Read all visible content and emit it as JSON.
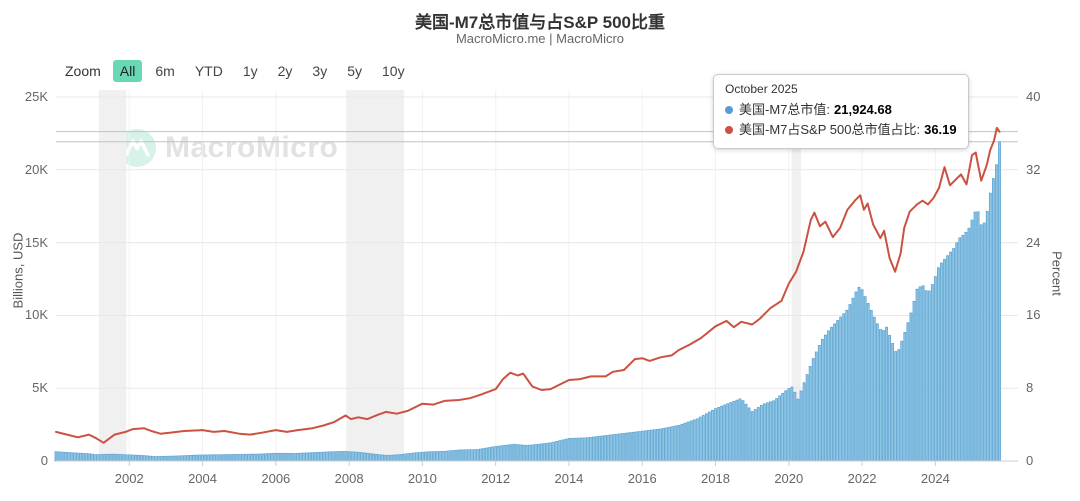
{
  "title": "美国-M7总市值与占S&P 500比重",
  "subtitle": "MacroMicro.me | MacroMicro",
  "watermark": {
    "text": "MacroMicro"
  },
  "toolbar": {
    "zoom_label": "Zoom",
    "ranges": [
      "All",
      "6m",
      "YTD",
      "1y",
      "2y",
      "3y",
      "5y",
      "10y"
    ],
    "active": "All"
  },
  "tooltip": {
    "date": "October 2025",
    "items": [
      {
        "label": "美国-M7总市值",
        "value": "21,924.68",
        "color": "#5b9bd5"
      },
      {
        "label": "美国-M7占S&P 500总市值占比",
        "value": "36.19",
        "color": "#cb5242"
      }
    ]
  },
  "left_axis": {
    "label": "Billions, USD",
    "ticks": [
      [
        0,
        "0"
      ],
      [
        5000,
        "5K"
      ],
      [
        10000,
        "10K"
      ],
      [
        15000,
        "15K"
      ],
      [
        20000,
        "20K"
      ],
      [
        25000,
        "25K"
      ]
    ]
  },
  "right_axis": {
    "label": "Percent",
    "ticks": [
      [
        0,
        "0"
      ],
      [
        8,
        "8"
      ],
      [
        16,
        "16"
      ],
      [
        24,
        "24"
      ],
      [
        32,
        "32"
      ],
      [
        40,
        "40"
      ]
    ]
  },
  "x_axis": {
    "tick_years": [
      2002,
      2004,
      2006,
      2008,
      2010,
      2012,
      2014,
      2016,
      2018,
      2020,
      2022,
      2024
    ]
  },
  "colors": {
    "bar_fill": "#8ec6e6",
    "bar_stroke": "#58a1d0",
    "line": "#cb5242",
    "grid": "#e7e7e7",
    "vgrid": "#f2f2f2",
    "axis_line": "#cccccc",
    "crosshair": "#c2c2c2",
    "band": "#f0f0f0",
    "active_btn": "#68d9b4",
    "logo_circle": "#d7f2e7"
  },
  "chart_data": {
    "type": "mixed",
    "xlim": [
      2000,
      2026.3
    ],
    "ylim_left": [
      0,
      25000
    ],
    "ylim_right": [
      0,
      40
    ],
    "resolution": "monthly",
    "last_point": {
      "date": "October 2025",
      "market_cap_billusd": 21924.68,
      "share_percent": 36.19
    },
    "recession_bands": [
      [
        2001.17,
        2001.92
      ],
      [
        2007.92,
        2009.5
      ],
      [
        2020.08,
        2020.33
      ]
    ],
    "crosshair_values": {
      "left": 21924.68,
      "right": 36.19
    },
    "series": [
      {
        "name": "美国-M7总市值",
        "type": "bar",
        "axis": "left",
        "unit": "Billions, USD",
        "points": [
          [
            2000.0,
            640
          ],
          [
            2000.3,
            590
          ],
          [
            2000.6,
            545
          ],
          [
            2000.9,
            500
          ],
          [
            2001.1,
            435
          ],
          [
            2001.35,
            460
          ],
          [
            2001.6,
            470
          ],
          [
            2001.9,
            430
          ],
          [
            2002.1,
            415
          ],
          [
            2002.4,
            375
          ],
          [
            2002.7,
            305
          ],
          [
            2003.0,
            325
          ],
          [
            2003.4,
            355
          ],
          [
            2003.8,
            405
          ],
          [
            2004.2,
            425
          ],
          [
            2004.6,
            435
          ],
          [
            2005.0,
            455
          ],
          [
            2005.5,
            475
          ],
          [
            2006.0,
            535
          ],
          [
            2006.5,
            520
          ],
          [
            2007.0,
            575
          ],
          [
            2007.5,
            635
          ],
          [
            2007.9,
            660
          ],
          [
            2008.3,
            595
          ],
          [
            2008.8,
            440
          ],
          [
            2009.05,
            385
          ],
          [
            2009.4,
            445
          ],
          [
            2009.8,
            565
          ],
          [
            2010.2,
            640
          ],
          [
            2010.6,
            665
          ],
          [
            2011.0,
            760
          ],
          [
            2011.5,
            790
          ],
          [
            2012.0,
            1000
          ],
          [
            2012.5,
            1150
          ],
          [
            2012.8,
            1080
          ],
          [
            2013.0,
            1100
          ],
          [
            2013.5,
            1250
          ],
          [
            2014.0,
            1550
          ],
          [
            2014.5,
            1600
          ],
          [
            2015.0,
            1750
          ],
          [
            2015.5,
            1900
          ],
          [
            2016.0,
            2050
          ],
          [
            2016.5,
            2200
          ],
          [
            2017.0,
            2450
          ],
          [
            2017.5,
            2900
          ],
          [
            2018.0,
            3600
          ],
          [
            2018.4,
            4000
          ],
          [
            2018.7,
            4300
          ],
          [
            2019.0,
            3400
          ],
          [
            2019.3,
            3900
          ],
          [
            2019.6,
            4150
          ],
          [
            2019.95,
            4900
          ],
          [
            2020.1,
            5100
          ],
          [
            2020.25,
            4250
          ],
          [
            2020.45,
            5600
          ],
          [
            2020.65,
            6950
          ],
          [
            2020.9,
            8300
          ],
          [
            2021.1,
            9000
          ],
          [
            2021.35,
            9700
          ],
          [
            2021.6,
            10400
          ],
          [
            2021.85,
            11700
          ],
          [
            2021.95,
            12050
          ],
          [
            2022.1,
            11200
          ],
          [
            2022.4,
            9500
          ],
          [
            2022.55,
            8800
          ],
          [
            2022.65,
            9300
          ],
          [
            2022.8,
            8300
          ],
          [
            2022.95,
            7300
          ],
          [
            2023.15,
            8700
          ],
          [
            2023.35,
            10300
          ],
          [
            2023.5,
            11800
          ],
          [
            2023.65,
            12100
          ],
          [
            2023.8,
            11500
          ],
          [
            2023.95,
            12300
          ],
          [
            2024.1,
            13400
          ],
          [
            2024.3,
            14000
          ],
          [
            2024.5,
            14600
          ],
          [
            2024.65,
            15300
          ],
          [
            2024.8,
            15600
          ],
          [
            2024.95,
            16100
          ],
          [
            2025.05,
            17000
          ],
          [
            2025.15,
            17300
          ],
          [
            2025.28,
            15900
          ],
          [
            2025.4,
            16900
          ],
          [
            2025.5,
            18400
          ],
          [
            2025.6,
            19600
          ],
          [
            2025.68,
            20500
          ],
          [
            2025.75,
            21924.68
          ]
        ]
      },
      {
        "name": "美国-M7占S&P 500总市值占比",
        "type": "line",
        "axis": "right",
        "unit": "Percent",
        "points": [
          [
            2000.0,
            3.2
          ],
          [
            2000.3,
            2.9
          ],
          [
            2000.6,
            2.6
          ],
          [
            2000.9,
            2.9
          ],
          [
            2001.1,
            2.5
          ],
          [
            2001.3,
            2.0
          ],
          [
            2001.6,
            2.9
          ],
          [
            2001.9,
            3.2
          ],
          [
            2002.1,
            3.5
          ],
          [
            2002.4,
            3.6
          ],
          [
            2002.6,
            3.3
          ],
          [
            2002.85,
            3.0
          ],
          [
            2003.1,
            3.1
          ],
          [
            2003.5,
            3.3
          ],
          [
            2004.0,
            3.4
          ],
          [
            2004.3,
            3.2
          ],
          [
            2004.6,
            3.3
          ],
          [
            2005.0,
            3.0
          ],
          [
            2005.3,
            2.9
          ],
          [
            2005.6,
            3.1
          ],
          [
            2006.0,
            3.4
          ],
          [
            2006.3,
            3.2
          ],
          [
            2006.6,
            3.4
          ],
          [
            2007.0,
            3.6
          ],
          [
            2007.3,
            3.9
          ],
          [
            2007.6,
            4.3
          ],
          [
            2007.9,
            5.0
          ],
          [
            2008.05,
            4.6
          ],
          [
            2008.25,
            4.8
          ],
          [
            2008.5,
            4.6
          ],
          [
            2008.8,
            5.1
          ],
          [
            2009.0,
            5.4
          ],
          [
            2009.3,
            5.2
          ],
          [
            2009.6,
            5.5
          ],
          [
            2010.0,
            6.3
          ],
          [
            2010.3,
            6.2
          ],
          [
            2010.6,
            6.6
          ],
          [
            2011.0,
            6.7
          ],
          [
            2011.3,
            6.9
          ],
          [
            2011.6,
            7.3
          ],
          [
            2012.0,
            7.9
          ],
          [
            2012.2,
            9.0
          ],
          [
            2012.4,
            9.7
          ],
          [
            2012.6,
            9.4
          ],
          [
            2012.75,
            9.6
          ],
          [
            2013.0,
            8.2
          ],
          [
            2013.25,
            7.8
          ],
          [
            2013.5,
            7.9
          ],
          [
            2013.8,
            8.5
          ],
          [
            2014.0,
            8.9
          ],
          [
            2014.3,
            9.0
          ],
          [
            2014.6,
            9.3
          ],
          [
            2015.0,
            9.3
          ],
          [
            2015.2,
            9.8
          ],
          [
            2015.5,
            10.0
          ],
          [
            2015.8,
            11.2
          ],
          [
            2016.0,
            11.3
          ],
          [
            2016.2,
            11.0
          ],
          [
            2016.5,
            11.4
          ],
          [
            2016.8,
            11.6
          ],
          [
            2017.0,
            12.2
          ],
          [
            2017.3,
            12.8
          ],
          [
            2017.6,
            13.5
          ],
          [
            2018.0,
            14.8
          ],
          [
            2018.3,
            15.4
          ],
          [
            2018.5,
            14.7
          ],
          [
            2018.7,
            15.3
          ],
          [
            2019.0,
            15.0
          ],
          [
            2019.2,
            15.6
          ],
          [
            2019.5,
            16.8
          ],
          [
            2019.8,
            17.6
          ],
          [
            2020.0,
            19.5
          ],
          [
            2020.2,
            20.8
          ],
          [
            2020.4,
            23.0
          ],
          [
            2020.6,
            26.5
          ],
          [
            2020.7,
            27.3
          ],
          [
            2020.85,
            25.8
          ],
          [
            2021.0,
            26.3
          ],
          [
            2021.2,
            24.6
          ],
          [
            2021.4,
            25.6
          ],
          [
            2021.6,
            27.6
          ],
          [
            2021.8,
            28.6
          ],
          [
            2021.95,
            29.2
          ],
          [
            2022.05,
            27.6
          ],
          [
            2022.15,
            28.3
          ],
          [
            2022.3,
            26.0
          ],
          [
            2022.5,
            24.5
          ],
          [
            2022.6,
            25.3
          ],
          [
            2022.75,
            22.3
          ],
          [
            2022.9,
            20.8
          ],
          [
            2023.05,
            22.8
          ],
          [
            2023.15,
            25.6
          ],
          [
            2023.3,
            27.4
          ],
          [
            2023.5,
            28.2
          ],
          [
            2023.65,
            28.6
          ],
          [
            2023.8,
            28.2
          ],
          [
            2023.95,
            28.9
          ],
          [
            2024.1,
            30.0
          ],
          [
            2024.25,
            32.3
          ],
          [
            2024.4,
            30.3
          ],
          [
            2024.55,
            30.9
          ],
          [
            2024.7,
            31.5
          ],
          [
            2024.85,
            30.4
          ],
          [
            2025.0,
            33.6
          ],
          [
            2025.1,
            33.9
          ],
          [
            2025.25,
            30.8
          ],
          [
            2025.4,
            32.5
          ],
          [
            2025.5,
            34.2
          ],
          [
            2025.6,
            35.2
          ],
          [
            2025.68,
            36.6
          ],
          [
            2025.75,
            36.19
          ]
        ]
      }
    ]
  }
}
